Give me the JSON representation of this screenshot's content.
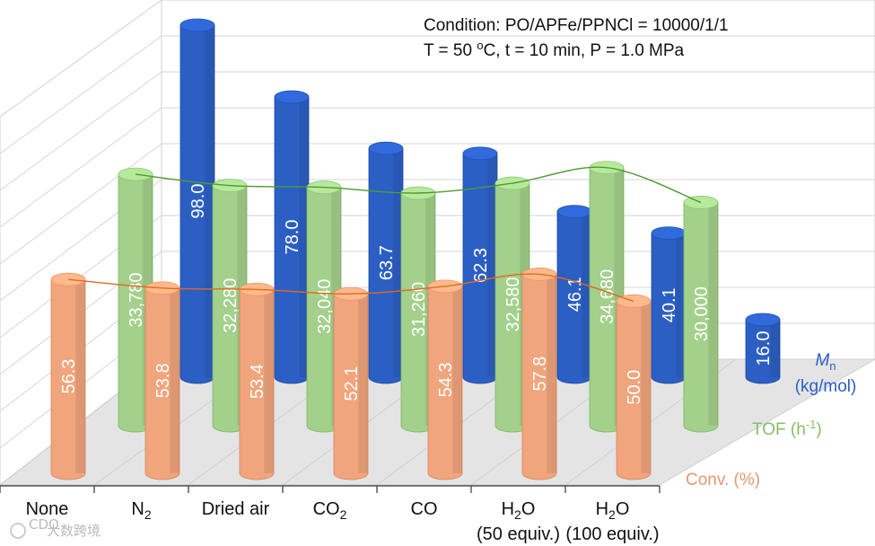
{
  "chart_data": {
    "type": "bar",
    "title_lines": [
      {
        "pre": "Condition: PO/APFe/PPNCl = 10000/1/1"
      },
      {
        "pre": "T = 50 ",
        "sup": "o",
        "post": "C, t = 10 min, P = 1.0 MPa"
      }
    ],
    "categories": [
      {
        "label": "None"
      },
      {
        "label": "N",
        "sub": "2"
      },
      {
        "label": "Dried air"
      },
      {
        "label": "CO",
        "sub": "2"
      },
      {
        "label": "CO"
      },
      {
        "label": "H",
        "sub": "2",
        "post": "O",
        "line2": "(50 equiv.)"
      },
      {
        "label": "H",
        "sub": "2",
        "post": "O",
        "line2": "(100 equiv.)"
      }
    ],
    "series": [
      {
        "name": "Conv. (%)",
        "name_text": "Conv. (%)",
        "color": "#f0a57d",
        "edge_color": "#d9845a",
        "line_color": "#e06a1e",
        "values": [
          56.3,
          53.8,
          53.4,
          52.1,
          54.3,
          57.8,
          50.0
        ],
        "labels": [
          "56.3",
          "53.8",
          "53.4",
          "52.1",
          "54.3",
          "57.8",
          "50.0"
        ]
      },
      {
        "name": "TOF (h-1)",
        "name_pre": "TOF (h",
        "name_sup": "-1",
        "name_post": ")",
        "color": "#a3d08b",
        "edge_color": "#7fb566",
        "line_color": "#4f9a30",
        "values": [
          33780,
          32280,
          32040,
          31260,
          32580,
          34680,
          30000
        ],
        "labels": [
          "33,780",
          "32,280",
          "32,040",
          "31,260",
          "32,580",
          "34,680",
          "30,000"
        ]
      },
      {
        "name": "Mn (kg/mol)",
        "name_main": "M",
        "name_sub": "n",
        "name_line2": "(kg/mol)",
        "color": "#2c5fc4",
        "edge_color": "#1f4aa3",
        "values": [
          98.0,
          78.0,
          63.7,
          62.3,
          46.1,
          40.1,
          16.0
        ],
        "labels": [
          "98.0",
          "78.0",
          "63.7",
          "62.3",
          "46.1",
          "40.1",
          "16.0"
        ]
      }
    ]
  },
  "watermark": {
    "symbol": "CDO",
    "text": "大数跨境"
  }
}
